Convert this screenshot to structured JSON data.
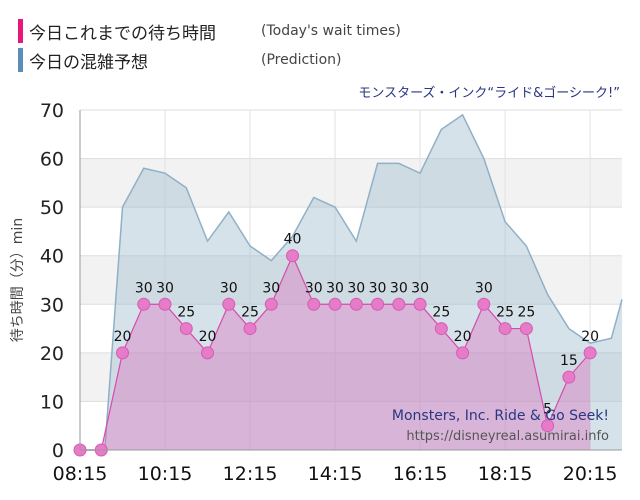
{
  "legend": {
    "actual": {
      "label": "今日これまでの待ち時間",
      "english": "(Today's wait times)",
      "color": "#e8177e"
    },
    "forecast": {
      "label": "今日の混雑予想",
      "english": "(Prediction)",
      "color": "#5a8db8"
    }
  },
  "chart_data": {
    "type": "area",
    "title": "モンスターズ・インク“ライド&ゴーシーク!”",
    "watermark": {
      "line1": "Monsters, Inc. Ride & Go Seek!",
      "line2": "https://disneyreal.asumirai.info"
    },
    "ylabel": "待ち時間（分）min",
    "xlabel": "",
    "ylim": [
      0,
      70
    ],
    "yticks": [
      0,
      10,
      20,
      30,
      40,
      50,
      60,
      70
    ],
    "xlim": [
      "08:15",
      "21:00"
    ],
    "xticks": [
      "08:15",
      "10:15",
      "12:15",
      "14:15",
      "16:15",
      "18:15",
      "20:15"
    ],
    "grid": true,
    "series": [
      {
        "name": "今日これまでの待ち時間",
        "style": "area-with-markers",
        "color": "#dc62b8",
        "labels_shown": true,
        "points": [
          {
            "x": "08:15",
            "y": 0
          },
          {
            "x": "08:45",
            "y": 0
          },
          {
            "x": "09:15",
            "y": 20
          },
          {
            "x": "09:45",
            "y": 30
          },
          {
            "x": "10:15",
            "y": 30
          },
          {
            "x": "10:45",
            "y": 25
          },
          {
            "x": "11:15",
            "y": 20
          },
          {
            "x": "11:45",
            "y": 30
          },
          {
            "x": "12:15",
            "y": 25
          },
          {
            "x": "12:45",
            "y": 30
          },
          {
            "x": "13:15",
            "y": 40
          },
          {
            "x": "13:45",
            "y": 30
          },
          {
            "x": "14:15",
            "y": 30
          },
          {
            "x": "14:45",
            "y": 30
          },
          {
            "x": "15:15",
            "y": 30
          },
          {
            "x": "15:45",
            "y": 30
          },
          {
            "x": "16:15",
            "y": 30
          },
          {
            "x": "16:45",
            "y": 25
          },
          {
            "x": "17:15",
            "y": 20
          },
          {
            "x": "17:45",
            "y": 30
          },
          {
            "x": "18:15",
            "y": 25
          },
          {
            "x": "18:45",
            "y": 25
          },
          {
            "x": "19:15",
            "y": 5
          },
          {
            "x": "19:45",
            "y": 15
          },
          {
            "x": "20:15",
            "y": 20
          }
        ]
      },
      {
        "name": "今日の混雑予想",
        "style": "area",
        "color": "#a3bfd1",
        "points": [
          {
            "x": "08:15",
            "y": 0
          },
          {
            "x": "08:50",
            "y": 0
          },
          {
            "x": "09:15",
            "y": 50
          },
          {
            "x": "09:45",
            "y": 58
          },
          {
            "x": "10:15",
            "y": 57
          },
          {
            "x": "10:45",
            "y": 54
          },
          {
            "x": "11:15",
            "y": 43
          },
          {
            "x": "11:45",
            "y": 49
          },
          {
            "x": "12:15",
            "y": 42
          },
          {
            "x": "12:45",
            "y": 39
          },
          {
            "x": "13:15",
            "y": 44
          },
          {
            "x": "13:45",
            "y": 52
          },
          {
            "x": "14:15",
            "y": 50
          },
          {
            "x": "14:45",
            "y": 43
          },
          {
            "x": "15:15",
            "y": 59
          },
          {
            "x": "15:45",
            "y": 59
          },
          {
            "x": "16:15",
            "y": 57
          },
          {
            "x": "16:45",
            "y": 66
          },
          {
            "x": "17:15",
            "y": 69
          },
          {
            "x": "17:45",
            "y": 60
          },
          {
            "x": "18:15",
            "y": 47
          },
          {
            "x": "18:45",
            "y": 42
          },
          {
            "x": "19:15",
            "y": 32
          },
          {
            "x": "19:45",
            "y": 25
          },
          {
            "x": "20:15",
            "y": 22
          },
          {
            "x": "20:45",
            "y": 23
          },
          {
            "x": "21:00",
            "y": 31
          }
        ]
      }
    ]
  }
}
